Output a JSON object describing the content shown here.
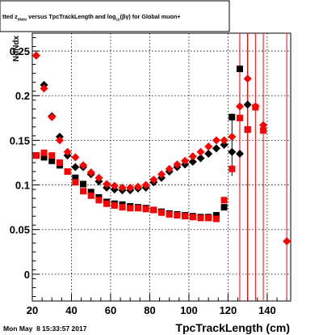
{
  "chart_data": {
    "type": "scatter",
    "title": "tted  z_{dNdx} versus TpcTrackLength and log_{10}(βγ) for Global muon+",
    "title_parts": {
      "a": "tted  z",
      "a_sub": "dNdx",
      "b": " versus TpcTrackLength and log",
      "b_sub": "10",
      "c": "(βγ) for Global muon+"
    },
    "xlabel": "TpcTrackLength (cm)",
    "ylabel": "NdNdx",
    "footer": "Mon May  8 15:33:57 2017",
    "xlim": [
      20,
      152
    ],
    "ylim": [
      -0.03,
      0.27
    ],
    "xticks": [
      20,
      40,
      60,
      80,
      100,
      120,
      140
    ],
    "yticks": [
      0,
      0.05,
      0.1,
      0.15,
      0.2,
      0.25
    ],
    "ytick_labels": [
      "0",
      "0.05",
      "0.1",
      "0.15",
      "0.2",
      "0.25"
    ],
    "grid": true,
    "series": [
      {
        "marker": "diamond",
        "color": "#000000",
        "points": [
          [
            22,
            0.245
          ],
          [
            26,
            0.212
          ],
          [
            30,
            0.177
          ],
          [
            34,
            0.154
          ],
          [
            38,
            0.133
          ],
          [
            42,
            0.12
          ],
          [
            46,
            0.12
          ],
          [
            50,
            0.112
          ],
          [
            54,
            0.104
          ],
          [
            58,
            0.097
          ],
          [
            62,
            0.095
          ],
          [
            66,
            0.094
          ],
          [
            70,
            0.094
          ],
          [
            74,
            0.096
          ],
          [
            78,
            0.097
          ],
          [
            82,
            0.103
          ],
          [
            86,
            0.108
          ],
          [
            90,
            0.115
          ],
          [
            94,
            0.12
          ],
          [
            98,
            0.123
          ],
          [
            102,
            0.126
          ],
          [
            106,
            0.13
          ],
          [
            110,
            0.135
          ],
          [
            114,
            0.141
          ],
          [
            118,
            0.145
          ],
          [
            122,
            0.137
          ],
          [
            126,
            0.135
          ],
          [
            130,
            0.19
          ]
        ]
      },
      {
        "marker": "diamond",
        "color": "#ff0000",
        "points": [
          [
            22,
            0.245
          ],
          [
            26,
            0.208
          ],
          [
            30,
            0.176
          ],
          [
            34,
            0.15
          ],
          [
            38,
            0.137
          ],
          [
            42,
            0.131
          ],
          [
            46,
            0.122
          ],
          [
            50,
            0.114
          ],
          [
            54,
            0.108
          ],
          [
            58,
            0.101
          ],
          [
            62,
            0.099
          ],
          [
            66,
            0.097
          ],
          [
            70,
            0.097
          ],
          [
            74,
            0.098
          ],
          [
            78,
            0.1
          ],
          [
            82,
            0.106
          ],
          [
            86,
            0.112
          ],
          [
            90,
            0.118
          ],
          [
            94,
            0.123
          ],
          [
            98,
            0.127
          ],
          [
            102,
            0.132
          ],
          [
            106,
            0.137
          ],
          [
            110,
            0.143
          ],
          [
            114,
            0.15
          ],
          [
            118,
            0.15
          ],
          [
            122,
            0.154
          ],
          [
            126,
            0.188
          ],
          [
            130,
            0.219
          ],
          [
            134,
            0.188
          ],
          [
            138,
            0.167
          ],
          [
            150,
            0.037
          ]
        ]
      },
      {
        "marker": "square",
        "color": "#000000",
        "points": [
          [
            22,
            0.133
          ],
          [
            26,
            0.131
          ],
          [
            30,
            0.127
          ],
          [
            34,
            0.122
          ],
          [
            38,
            0.115
          ],
          [
            42,
            0.108
          ],
          [
            46,
            0.101
          ],
          [
            50,
            0.092
          ],
          [
            54,
            0.086
          ],
          [
            58,
            0.081
          ],
          [
            62,
            0.079
          ],
          [
            66,
            0.078
          ],
          [
            70,
            0.076
          ],
          [
            74,
            0.075
          ],
          [
            78,
            0.074
          ],
          [
            82,
            0.072
          ],
          [
            86,
            0.07
          ],
          [
            90,
            0.068
          ],
          [
            94,
            0.067
          ],
          [
            98,
            0.066
          ],
          [
            102,
            0.065
          ],
          [
            106,
            0.064
          ],
          [
            110,
            0.064
          ],
          [
            114,
            0.066
          ],
          [
            118,
            0.075
          ],
          [
            122,
            0.176
          ],
          [
            126,
            0.23
          ],
          [
            130,
            0.162
          ]
        ]
      },
      {
        "marker": "square",
        "color": "#ff0000",
        "points": [
          [
            22,
            0.133
          ],
          [
            26,
            0.136
          ],
          [
            30,
            0.133
          ],
          [
            34,
            0.125
          ],
          [
            38,
            0.115
          ],
          [
            42,
            0.103
          ],
          [
            46,
            0.093
          ],
          [
            50,
            0.088
          ],
          [
            54,
            0.083
          ],
          [
            58,
            0.079
          ],
          [
            62,
            0.077
          ],
          [
            66,
            0.075
          ],
          [
            70,
            0.074
          ],
          [
            74,
            0.074
          ],
          [
            78,
            0.073
          ],
          [
            82,
            0.072
          ],
          [
            86,
            0.069
          ],
          [
            90,
            0.067
          ],
          [
            94,
            0.066
          ],
          [
            98,
            0.065
          ],
          [
            102,
            0.064
          ],
          [
            106,
            0.063
          ],
          [
            110,
            0.063
          ],
          [
            114,
            0.062
          ],
          [
            118,
            0.083
          ],
          [
            122,
            0.118
          ],
          [
            126,
            0.175
          ],
          [
            130,
            0.162
          ],
          [
            134,
            0.187
          ],
          [
            138,
            0.161
          ]
        ]
      }
    ],
    "error_bars": [
      {
        "x": 122,
        "low": 0.11,
        "high": 0.18,
        "color": "#000000"
      },
      {
        "x": 126,
        "low": 0.1,
        "high": 0.26,
        "color": "#000000"
      },
      {
        "x": 130,
        "low": -0.03,
        "high": 0.27,
        "color": "#000000"
      },
      {
        "x": 126,
        "low": -0.03,
        "high": 0.27,
        "color": "#ff0000"
      },
      {
        "x": 130,
        "low": -0.03,
        "high": 0.27,
        "color": "#ff0000"
      },
      {
        "x": 134,
        "low": -0.03,
        "high": 0.27,
        "color": "#ff0000"
      },
      {
        "x": 138,
        "low": -0.03,
        "high": 0.27,
        "color": "#ff0000"
      },
      {
        "x": 150,
        "low": -0.03,
        "high": 0.27,
        "color": "#ff0000"
      }
    ]
  }
}
